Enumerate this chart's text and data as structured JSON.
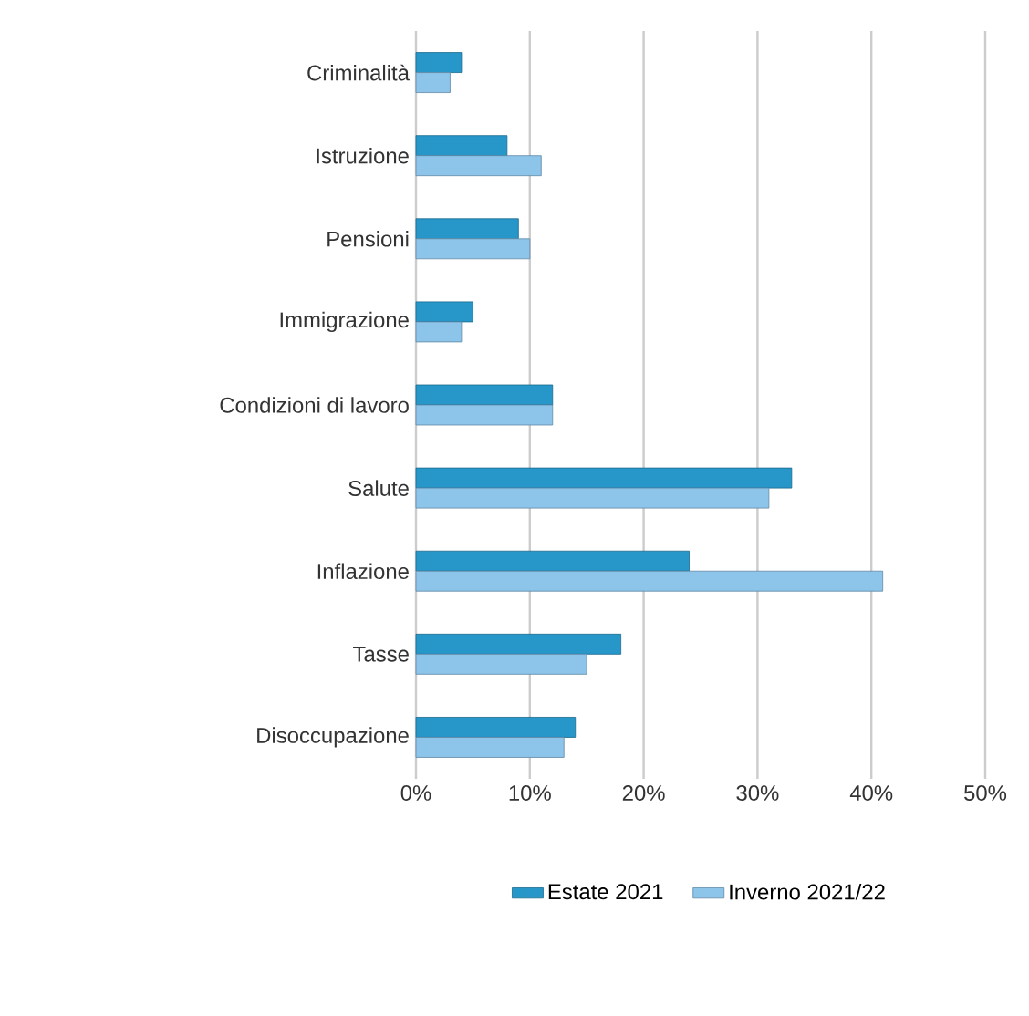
{
  "chart_data": {
    "type": "bar",
    "orientation": "horizontal",
    "categories": [
      "Criminalità",
      "Istruzione",
      "Pensioni",
      "Immigrazione",
      "Condizioni di lavoro",
      "Salute",
      "Inflazione",
      "Tasse",
      "Disoccupazione"
    ],
    "series": [
      {
        "name": "Estate 2021",
        "color": "#2796c9",
        "values": [
          4,
          8,
          9,
          5,
          12,
          33,
          24,
          18,
          14
        ]
      },
      {
        "name": "Inverno 2021/22",
        "color": "#8cc4ea",
        "values": [
          3,
          11,
          10,
          4,
          12,
          31,
          41,
          15,
          13
        ]
      }
    ],
    "xlim": [
      0,
      50
    ],
    "xticks": [
      {
        "value": 0,
        "label": "0%"
      },
      {
        "value": 10,
        "label": "10%"
      },
      {
        "value": 20,
        "label": "20%"
      },
      {
        "value": 30,
        "label": "30%"
      },
      {
        "value": 40,
        "label": "40%"
      },
      {
        "value": 50,
        "label": "50%"
      }
    ],
    "grid": "x",
    "legend": "bottom"
  }
}
